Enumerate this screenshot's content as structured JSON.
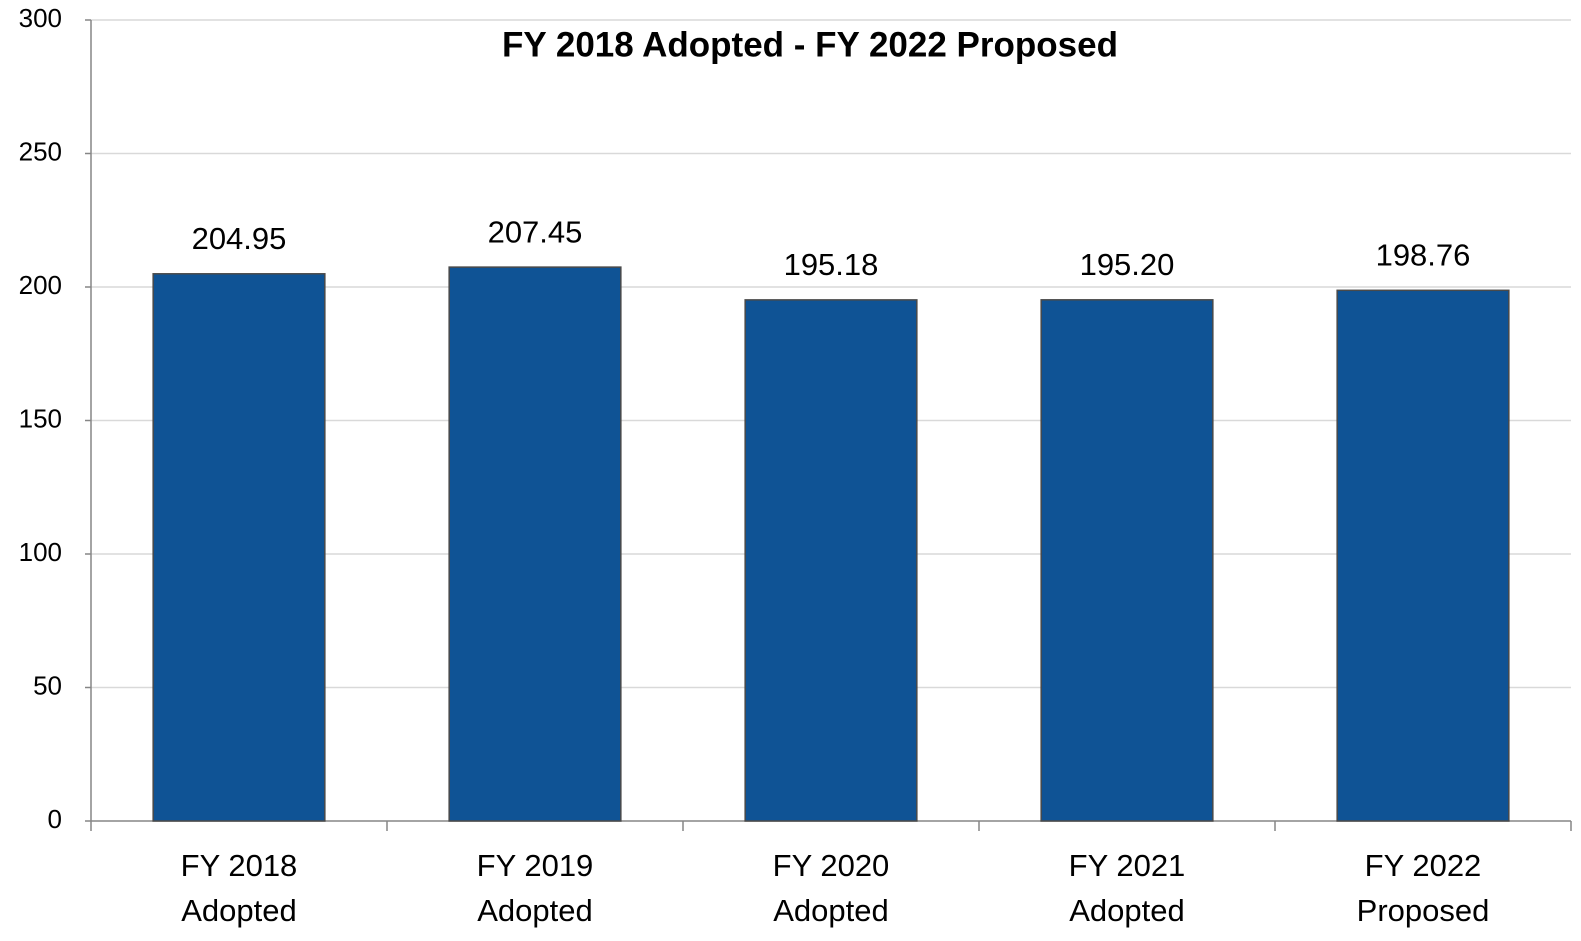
{
  "chart_data": {
    "type": "bar",
    "title": "FY 2018 Adopted - FY 2022 Proposed",
    "categories": [
      "FY 2018 Adopted",
      "FY 2019 Adopted",
      "FY 2020 Adopted",
      "FY 2021 Adopted",
      "FY 2022 Proposed"
    ],
    "values": [
      204.95,
      207.45,
      195.18,
      195.2,
      198.76
    ],
    "value_labels": [
      "204.95",
      "207.45",
      "195.18",
      "195.20",
      "198.76"
    ],
    "color": "#0f5395",
    "ylim": [
      0,
      300
    ],
    "yticks": [
      0,
      50,
      100,
      150,
      200,
      250,
      300
    ],
    "grid": true
  }
}
